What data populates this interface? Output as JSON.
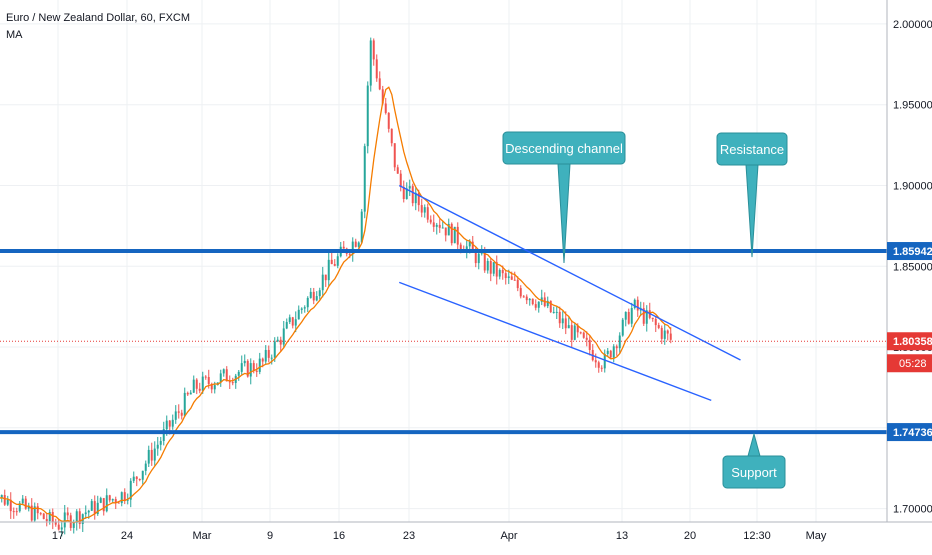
{
  "header": {
    "title": "Euro / New Zealand Dollar, 60, FXCM",
    "indicator": "MA"
  },
  "chart_data": {
    "type": "line",
    "symbol_title": "Euro / New Zealand Dollar, 60, FXCM",
    "indicator": "MA",
    "y_axis_ticks": [
      "2.00000",
      "1.95000",
      "1.90000",
      "1.85000",
      "1.80000",
      "1.75000",
      "1.70000"
    ],
    "y_axis_values": [
      2.0,
      1.95,
      1.9,
      1.85,
      1.8,
      1.75,
      1.7
    ],
    "ylim": [
      1.6917,
      2.0148
    ],
    "x_axis_labels": [
      "17",
      "24",
      "Mar",
      "9",
      "16",
      "23",
      "Apr",
      "13",
      "20",
      "12:30",
      "May"
    ],
    "price_series": {
      "name": "",
      "x": [
        "Feb 10",
        "Feb 17",
        "Feb 24",
        "Mar 2",
        "Mar 9",
        "Mar 16",
        "Mar 19",
        "Mar 20",
        "Mar 23",
        "Apr 1",
        "Apr 7",
        "Apr 13",
        "Apr 16",
        "Apr 20"
      ],
      "values": [
        1.71,
        1.69,
        1.71,
        1.775,
        1.79,
        1.85,
        1.87,
        1.99,
        1.9,
        1.85,
        1.825,
        1.79,
        1.825,
        1.80358
      ]
    },
    "colors": {
      "candle_up": "#26a69a",
      "candle_down": "#ef5350",
      "ma": "#f57c00",
      "levels": "#1565c0",
      "channel": "#2962ff",
      "callout": "#3fb1bd",
      "last_price": "#e53935"
    },
    "horizontal_levels": [
      {
        "label": "Resistance",
        "value": 1.85942,
        "value_label": "1.85942"
      },
      {
        "label": "Support",
        "value": 1.74736,
        "value_label": "1.74736"
      }
    ],
    "channel": {
      "label": "Descending channel",
      "upper": [
        {
          "x": "Mar 23",
          "y": 1.9
        },
        {
          "x": "Apr 27",
          "y": 1.792
        }
      ],
      "lower": [
        {
          "x": "Mar 23",
          "y": 1.84
        },
        {
          "x": "Apr 24",
          "y": 1.767
        }
      ]
    },
    "last_price": {
      "value": 1.80358,
      "label": "1.80358",
      "countdown": "05:28"
    },
    "annotations": [
      "Descending channel",
      "Resistance",
      "Support"
    ]
  }
}
